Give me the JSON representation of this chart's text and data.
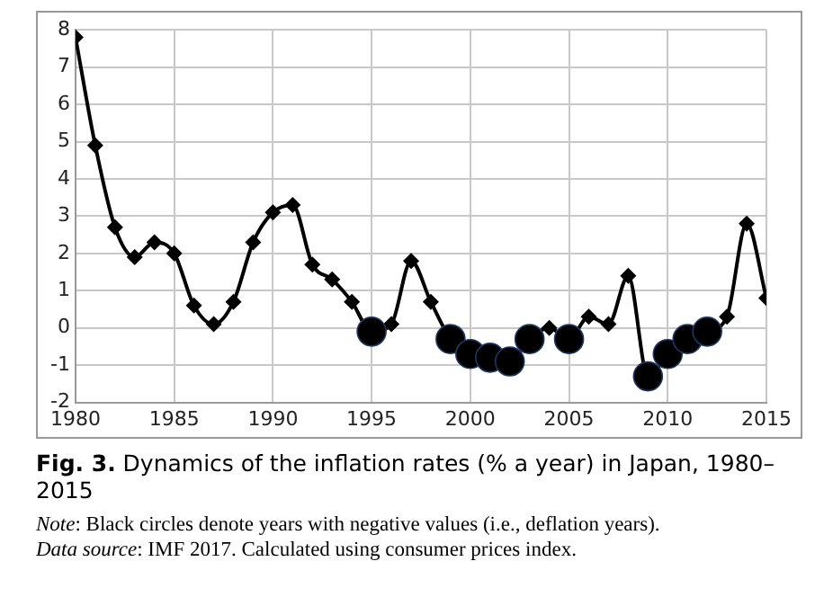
{
  "chart_data": {
    "type": "line",
    "title": "Fig. 3. Dynamics of the inflation rates (% a year) in Japan, 1980–2015",
    "x": [
      1980,
      1981,
      1982,
      1983,
      1984,
      1985,
      1986,
      1987,
      1988,
      1989,
      1990,
      1991,
      1992,
      1993,
      1994,
      1995,
      1996,
      1997,
      1998,
      1999,
      2000,
      2001,
      2002,
      2003,
      2004,
      2005,
      2006,
      2007,
      2008,
      2009,
      2010,
      2011,
      2012,
      2013,
      2014,
      2015
    ],
    "series": [
      {
        "color": "#000000",
        "marker": "diamond",
        "values": [
          7.8,
          4.9,
          2.7,
          1.9,
          2.3,
          2.0,
          0.6,
          0.1,
          0.7,
          2.3,
          3.1,
          3.3,
          1.7,
          1.3,
          0.7,
          -0.1,
          0.1,
          1.8,
          0.7,
          -0.3,
          -0.7,
          -0.8,
          -0.9,
          -0.3,
          0.0,
          -0.3,
          0.3,
          0.1,
          1.4,
          -1.3,
          -0.7,
          -0.3,
          -0.1,
          0.3,
          2.8,
          0.8
        ]
      },
      {
        "type": "scatter",
        "color": "#000000",
        "marker": "circle",
        "x": [
          1995,
          1999,
          2000,
          2001,
          2002,
          2003,
          2005,
          2009,
          2010,
          2011,
          2012
        ],
        "values": [
          -0.1,
          -0.3,
          -0.7,
          -0.8,
          -0.9,
          -0.3,
          -0.3,
          -1.3,
          -0.7,
          -0.3,
          -0.1
        ]
      }
    ],
    "xlim": [
      1980,
      2015
    ],
    "xticks": [
      1980,
      1985,
      1990,
      1995,
      2000,
      2005,
      2010,
      2015
    ],
    "ylim": [
      -2,
      8
    ],
    "yticks": [
      -2,
      -1,
      0,
      1,
      2,
      3,
      4,
      5,
      6,
      7,
      8
    ],
    "grid": true,
    "line_style": "solid",
    "annotations": [
      "Note: Black circles denote years with negative values (i.e., deflation years).",
      "Data source: IMF 2017. Calculated using consumer prices index."
    ]
  }
}
